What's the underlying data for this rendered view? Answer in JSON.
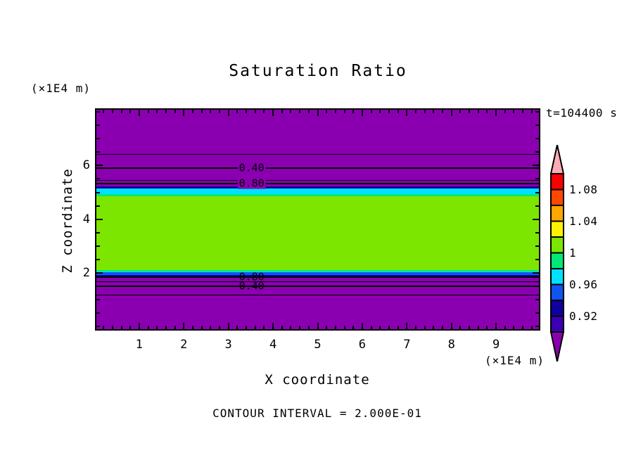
{
  "header": {
    "title": "Saturation Ratio",
    "time_label": "t=104400 s"
  },
  "axes": {
    "x": {
      "title": "X coordinate",
      "unit": "(×1E4 m)"
    },
    "y": {
      "title": "Z coordinate",
      "unit": "(×1E4 m)"
    }
  },
  "footer": {
    "contour_note": "CONTOUR INTERVAL = 2.000E-01"
  },
  "chart_data": {
    "type": "heatmap",
    "subtype": "filled-contour-plot",
    "title": "Saturation Ratio",
    "xlabel": "X coordinate",
    "ylabel": "Z coordinate",
    "x_unit": "(×1E4 m)",
    "y_unit": "(×1E4 m)",
    "time_annotation": "t=104400 s",
    "contour_interval": 0.2,
    "contour_note": "CONTOUR INTERVAL = 2.000E-01",
    "x_range": [
      0.04,
      9.96
    ],
    "z_range": [
      -0.105,
      8.085
    ],
    "x_major_ticks": [
      1,
      2,
      3,
      4,
      5,
      6,
      7,
      8,
      9
    ],
    "x_minor_step": 0.2,
    "z_major_ticks": [
      6,
      4,
      2
    ],
    "z_minor_step": 0.5,
    "background_value": "< 0.90",
    "background_color": "#8A00B0",
    "fill_bands": [
      {
        "color": "#8A00B0",
        "value_range": "< 0.90",
        "z_from": 8.085,
        "z_to": 5.22
      },
      {
        "color": "#0F00A0",
        "value_range": "0.92 - 0.94",
        "z_from": 5.22,
        "z_to": 5.14
      },
      {
        "color": "#00E1FF",
        "value_range": "0.96 - 0.98",
        "z_from": 5.14,
        "z_to": 4.935
      },
      {
        "color": "#00E878",
        "value_range": "0.98 - 1.00",
        "z_from": 4.935,
        "z_to": 4.857
      },
      {
        "color": "#7DE600",
        "value_range": "1.00 - 1.02",
        "z_from": 4.857,
        "z_to": 2.104
      },
      {
        "color": "#00E878",
        "value_range": "0.98 - 1.00",
        "z_from": 2.104,
        "z_to": 2.052
      },
      {
        "color": "#00E1FF",
        "value_range": "0.96 - 0.98",
        "z_from": 2.052,
        "z_to": 2.026
      },
      {
        "color": "#1055F0",
        "value_range": "0.94 - 0.96",
        "z_from": 2.026,
        "z_to": 1.922
      },
      {
        "color": "#0F00A0",
        "value_range": "0.92 - 0.94",
        "z_from": 1.922,
        "z_to": 1.87
      },
      {
        "color": "#8A00B0",
        "value_range": "< 0.90",
        "z_from": 1.87,
        "z_to": -0.105
      }
    ],
    "contour_lines": [
      {
        "value": 0.2,
        "z": 6.416,
        "thickness": 1,
        "label": null
      },
      {
        "value": 0.4,
        "z": 5.896,
        "thickness": 2,
        "label": "0.40",
        "label_x": 3.52,
        "label_masked": true
      },
      {
        "value": 0.6,
        "z": 5.455,
        "thickness": 1,
        "label": null
      },
      {
        "value": 0.8,
        "z": 5.325,
        "thickness": 2,
        "label": "0.80",
        "label_x": 3.52,
        "label_masked": true
      },
      {
        "value": 0.8,
        "z": 1.844,
        "thickness": 2,
        "label": "0.80",
        "label_x": 3.52,
        "label_masked": false
      },
      {
        "value": 0.6,
        "z": 1.662,
        "thickness": 1,
        "label": null
      },
      {
        "value": 0.4,
        "z": 1.506,
        "thickness": 2,
        "label": "0.40",
        "label_x": 3.52,
        "label_masked": false
      },
      {
        "value": 0.2,
        "z": 1.169,
        "thickness": 1,
        "label": null
      }
    ],
    "colorbar": {
      "orientation": "vertical",
      "arrow_top_color": "#FFABB5",
      "arrow_top_value": "> 1.10",
      "arrow_bottom_color": "#8A00B0",
      "arrow_bottom_value": "< 0.90",
      "segments_top_to_bottom": [
        {
          "color": "#FB0000",
          "value_range": "1.08 - 1.10"
        },
        {
          "color": "#FF4800",
          "value_range": "1.06 - 1.08"
        },
        {
          "color": "#FFA500",
          "value_range": "1.04 - 1.06"
        },
        {
          "color": "#FFF200",
          "value_range": "1.02 - 1.04"
        },
        {
          "color": "#7DE600",
          "value_range": "1.00 - 1.02"
        },
        {
          "color": "#00E878",
          "value_range": "0.98 - 1.00"
        },
        {
          "color": "#00E1FF",
          "value_range": "0.96 - 0.98"
        },
        {
          "color": "#1055F0",
          "value_range": "0.94 - 0.96"
        },
        {
          "color": "#0F00A0",
          "value_range": "0.92 - 0.94"
        },
        {
          "color": "#3C00B4",
          "value_range": "0.90 - 0.92"
        }
      ],
      "labels": [
        {
          "text": "1.08",
          "boundary_index": 1
        },
        {
          "text": "1.04",
          "boundary_index": 3
        },
        {
          "text": "1",
          "boundary_index": 5
        },
        {
          "text": "0.96",
          "boundary_index": 7
        },
        {
          "text": "0.92",
          "boundary_index": 9
        }
      ]
    }
  }
}
